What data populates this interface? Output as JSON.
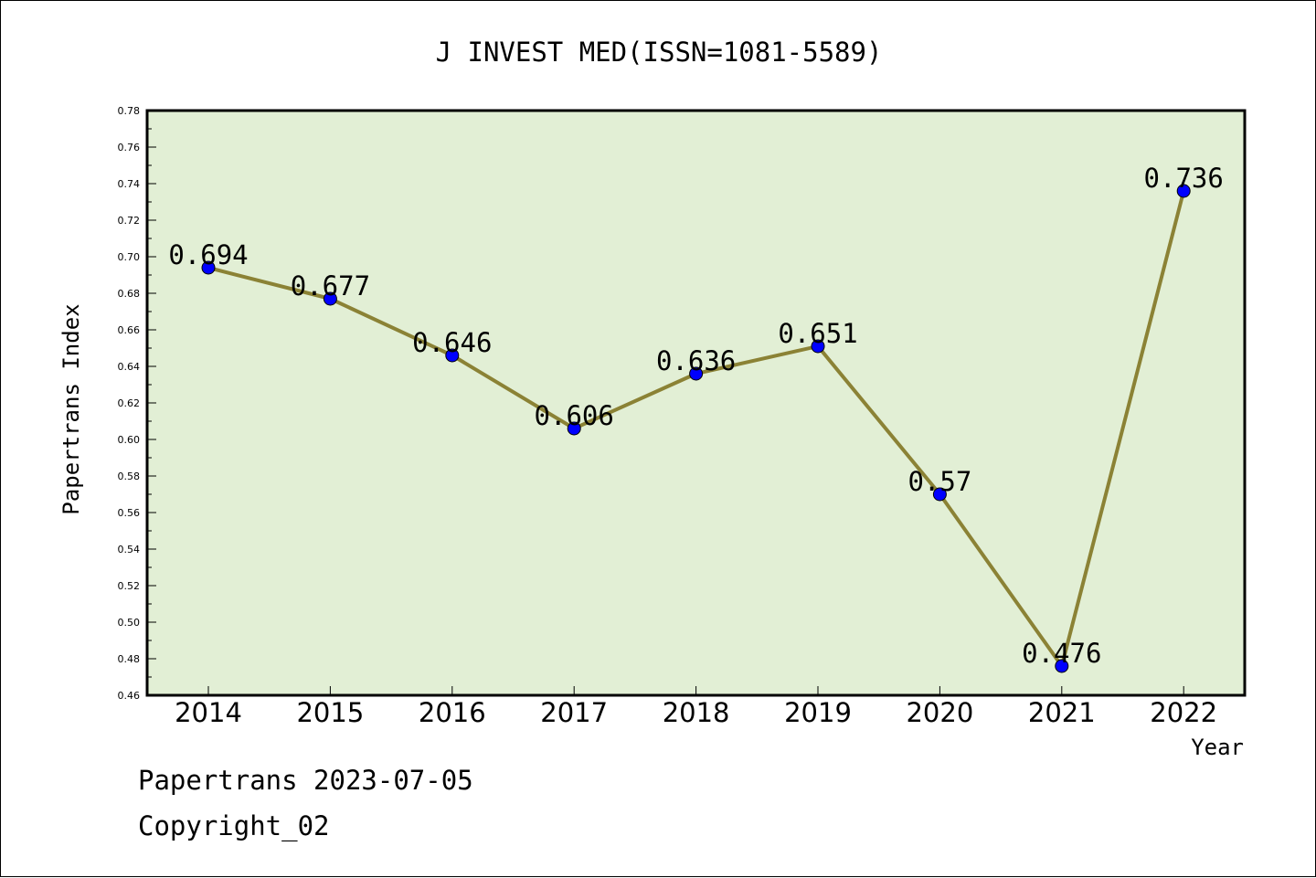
{
  "chart_data": {
    "type": "line",
    "title": "J INVEST MED(ISSN=1081-5589)",
    "xlabel": "Year",
    "ylabel": "Papertrans Index",
    "categories": [
      "2014",
      "2015",
      "2016",
      "2017",
      "2018",
      "2019",
      "2020",
      "2021",
      "2022"
    ],
    "values": [
      0.694,
      0.677,
      0.646,
      0.606,
      0.636,
      0.651,
      0.57,
      0.476,
      0.736
    ],
    "data_labels": [
      "0.694",
      "0.677",
      "0.646",
      "0.606",
      "0.636",
      "0.651",
      "0.57",
      "0.476",
      "0.736"
    ],
    "ylim": [
      0.46,
      0.78
    ],
    "y_ticks": [
      "0.46",
      "0.48",
      "0.50",
      "0.52",
      "0.54",
      "0.56",
      "0.58",
      "0.60",
      "0.62",
      "0.64",
      "0.66",
      "0.68",
      "0.70",
      "0.72",
      "0.74",
      "0.76",
      "0.78"
    ],
    "grid": false,
    "colors": {
      "plot_background": "#e2efd5",
      "line": "#8b8235",
      "marker": "#0000ff"
    }
  },
  "footer": {
    "stamp": "Papertrans 2023-07-05",
    "copyright": "Copyright_02"
  }
}
